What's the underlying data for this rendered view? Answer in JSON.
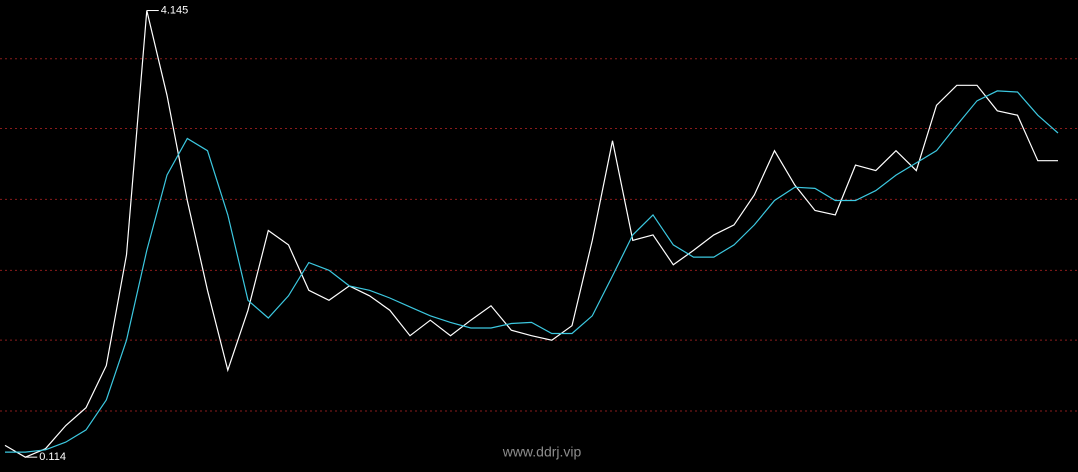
{
  "chart_data": {
    "type": "line",
    "categories": [
      null,
      null,
      null,
      null,
      null,
      null,
      null,
      null,
      null,
      null,
      null,
      null,
      null,
      null,
      null,
      null,
      null,
      null,
      null,
      null,
      null,
      null,
      null,
      null,
      null,
      null,
      null,
      null,
      null,
      null,
      null,
      null,
      null,
      null,
      null,
      null,
      null,
      null,
      null,
      null,
      null,
      null,
      null,
      null,
      null,
      null,
      null,
      null,
      null,
      null,
      null,
      null,
      null
    ],
    "series": [
      {
        "color": "#ffffff",
        "values": [
          0.22,
          0.114,
          0.19,
          0.4,
          0.56,
          0.94,
          1.94,
          4.145,
          3.38,
          2.43,
          1.62,
          0.9,
          1.44,
          2.16,
          2.03,
          1.62,
          1.53,
          1.66,
          1.57,
          1.44,
          1.21,
          1.35,
          1.21,
          1.35,
          1.48,
          1.26,
          1.21,
          1.17,
          1.3,
          2.07,
          2.97,
          2.07,
          2.12,
          1.85,
          1.98,
          2.12,
          2.21,
          2.48,
          2.88,
          2.57,
          2.34,
          2.3,
          2.75,
          2.7,
          2.88,
          2.7,
          3.29,
          3.47,
          3.47,
          3.24,
          3.2,
          2.79,
          2.79
        ]
      },
      {
        "color": "#3cc8e0",
        "values": [
          0.16,
          0.16,
          0.18,
          0.25,
          0.36,
          0.63,
          1.17,
          1.98,
          2.66,
          2.99,
          2.88,
          2.3,
          1.53,
          1.37,
          1.57,
          1.87,
          1.8,
          1.66,
          1.62,
          1.55,
          1.47,
          1.39,
          1.33,
          1.28,
          1.28,
          1.32,
          1.33,
          1.23,
          1.23,
          1.39,
          1.75,
          2.12,
          2.3,
          2.03,
          1.92,
          1.92,
          2.03,
          2.21,
          2.43,
          2.55,
          2.54,
          2.43,
          2.43,
          2.52,
          2.66,
          2.77,
          2.88,
          3.11,
          3.33,
          3.42,
          3.41,
          3.2,
          3.04
        ]
      }
    ],
    "max_label": "4.145",
    "min_label": "0.114",
    "watermark": "www.ddrj.vip",
    "ylim": [
      -0.02,
      4.24
    ],
    "yticks": [
      0.53,
      1.17,
      1.8,
      2.44,
      3.08,
      3.71
    ],
    "grid": true,
    "grid_color": "#8a1c1c"
  }
}
